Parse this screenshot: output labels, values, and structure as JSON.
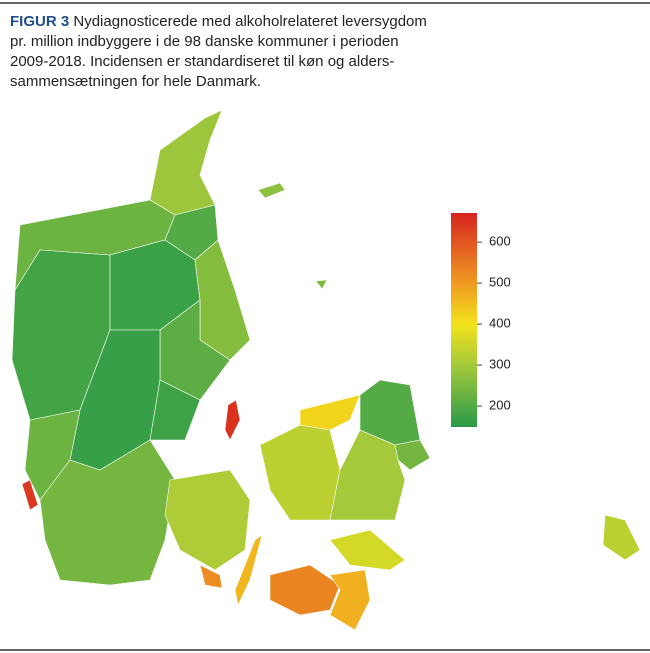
{
  "header": {
    "label": "FIGUR 3",
    "lines": [
      "Nydiagnosticerede med alkoholrelateret leversygdom",
      "pr. million indbyggere i de 98 danske kommuner i perioden",
      "2009-2018. Incidensen er standardiseret til køn og alders-",
      "sammensætningen for hele Danmark."
    ]
  },
  "chart_data": {
    "type": "choropleth",
    "values": [
      290,
      230,
      200,
      180,
      170,
      260,
      210,
      165,
      175,
      230,
      640,
      240,
      310,
      460,
      520,
      650,
      330,
      420,
      200,
      240,
      300,
      360,
      530,
      470,
      330,
      250,
      270
    ],
    "colorbar": {
      "lim": [
        149,
        671
      ],
      "ticks": [
        200,
        300,
        400,
        500,
        600
      ],
      "colors": [
        {
          "value": 149,
          "color": "#2a9a48"
        },
        {
          "value": 300,
          "color": "#a5c93b"
        },
        {
          "value": 400,
          "color": "#f3e31b"
        },
        {
          "value": 500,
          "color": "#ef9a22"
        },
        {
          "value": 671,
          "color": "#d6241f"
        }
      ]
    }
  }
}
